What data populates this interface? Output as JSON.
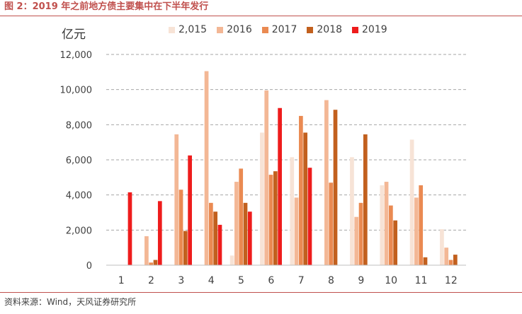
{
  "figure": {
    "title": "图 2：2019 年之前地方债主要集中在下半年发行",
    "source": "资料来源：Wind，天风证券研究所"
  },
  "chart_data": {
    "type": "bar",
    "unit_label": "亿元",
    "categories": [
      "1",
      "2",
      "3",
      "4",
      "5",
      "6",
      "7",
      "8",
      "9",
      "10",
      "11",
      "12"
    ],
    "series": [
      {
        "name": "2,015",
        "color": "#f7e3d6",
        "values": [
          0,
          0,
          0,
          0,
          550,
          7550,
          6150,
          0,
          6150,
          4550,
          7150,
          2050
        ]
      },
      {
        "name": "2016",
        "color": "#f3b795",
        "values": [
          0,
          1650,
          7450,
          11050,
          4750,
          9950,
          3850,
          9400,
          2750,
          4750,
          3850,
          1000
        ]
      },
      {
        "name": "2017",
        "color": "#ea8a52",
        "values": [
          0,
          150,
          4300,
          3550,
          5500,
          5150,
          8500,
          4700,
          3550,
          3400,
          4550,
          300
        ]
      },
      {
        "name": "2018",
        "color": "#c2601e",
        "values": [
          0,
          300,
          1950,
          3050,
          3550,
          5350,
          7550,
          8850,
          7450,
          2550,
          450,
          600
        ]
      },
      {
        "name": "2019",
        "color": "#ee1c1c",
        "values": [
          4150,
          3650,
          6250,
          2300,
          3050,
          8950,
          5550,
          0,
          0,
          0,
          0,
          0
        ]
      }
    ],
    "y_ticks": [
      "0",
      "2,000",
      "4,000",
      "6,000",
      "8,000",
      "10,000",
      "12,000"
    ],
    "y_tick_values": [
      0,
      2000,
      4000,
      6000,
      8000,
      10000,
      12000
    ],
    "ylim": [
      0,
      12000
    ],
    "grid": true,
    "legend": "top"
  }
}
